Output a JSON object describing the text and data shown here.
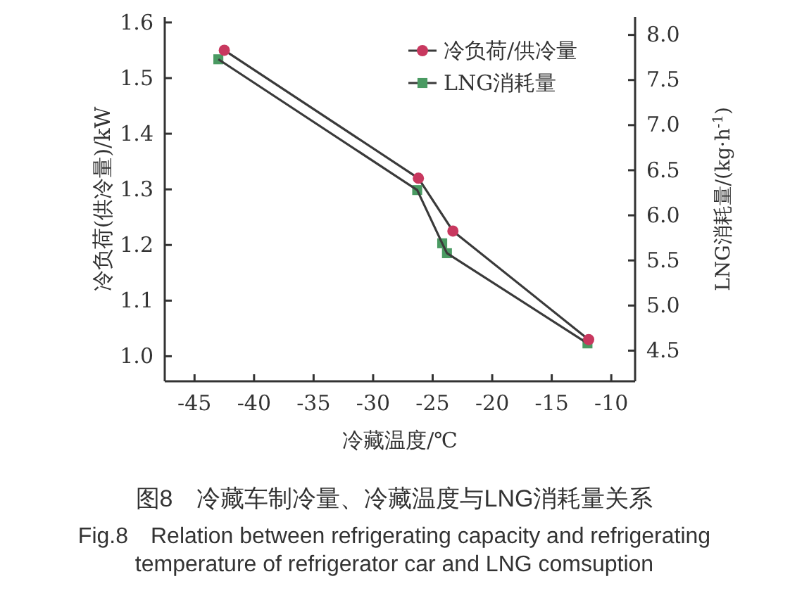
{
  "chart_data": {
    "type": "line",
    "xlabel": "冷藏温度/℃",
    "ylabel": "冷负荷(供冷量)/kW",
    "y2label": "LNG消耗量/(kg·h$^{-1}$)",
    "xlim": [
      -47.5,
      -8
    ],
    "xticks": [
      -45,
      -40,
      -35,
      -30,
      -25,
      -20,
      -15,
      -10
    ],
    "ylim": [
      0.955,
      1.61
    ],
    "yticks": [
      {
        "value": 1,
        "label": "1.0"
      },
      1.1,
      1.2,
      1.3,
      1.4,
      1.5,
      1.6
    ],
    "y2lim": [
      4.16,
      8.2
    ],
    "y2ticks": [
      4.5,
      {
        "value": 5,
        "label": "5.0"
      },
      5.5,
      {
        "value": 6,
        "label": "6.0"
      },
      6.5,
      {
        "value": 7,
        "label": "7.0"
      },
      7.5,
      {
        "value": 8,
        "label": "8.0"
      }
    ],
    "legend": "top right",
    "grid": false,
    "line_style": "solid",
    "series": [
      {
        "name": "冷负荷/供冷量",
        "color": "#c8385f",
        "marker": "circle",
        "x": [
          -42.5,
          -26.2,
          -23.3,
          -11.9
        ],
        "values": [
          1.55,
          1.32,
          1.225,
          1.03
        ]
      },
      {
        "name": "LNG消耗量",
        "color": "#4a9a62",
        "marker": "square",
        "axis": "y2",
        "x": [
          -43,
          -26.3,
          -24.2,
          -23.8,
          -12
        ],
        "values": [
          7.73,
          6.28,
          5.69,
          5.58,
          4.58
        ]
      }
    ],
    "annotations": [
      "图8　冷藏车制冷量、冷藏温度与LNG消耗量关系",
      "Fig.8　Relation between refrigerating capacity and refrigerating temperature of refrigerator car and LNG comsuption"
    ]
  }
}
